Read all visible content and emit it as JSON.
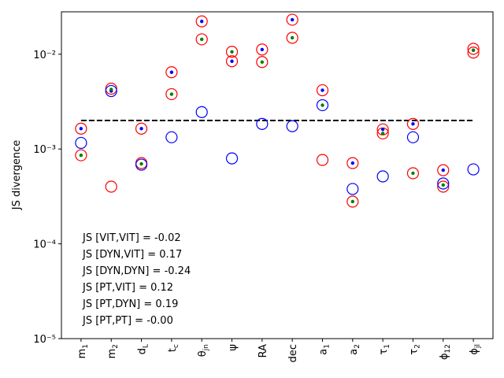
{
  "chart_data": {
    "type": "scatter",
    "categories": [
      "m_1",
      "m_2",
      "d_L",
      "t_c",
      "θ_jn",
      "ψ",
      "RA",
      "dec",
      "a_1",
      "a_2",
      "τ_1",
      "τ_2",
      "ϕ_12",
      "ϕ_jl"
    ],
    "ylabel": "JS divergence",
    "log_y": true,
    "ylim": [
      1e-05,
      0.028
    ],
    "yticks": [
      {
        "value": 1e-05,
        "label": "10⁻⁵"
      },
      {
        "value": 0.0001,
        "label": "10⁻⁴"
      },
      {
        "value": 0.001,
        "label": "10⁻³"
      },
      {
        "value": 0.01,
        "label": "10⁻²"
      }
    ],
    "hline": {
      "value": 0.002,
      "color": "#000000",
      "style": "dashed"
    },
    "series": [
      {
        "marker": "open-circle",
        "color": "#ff0000",
        "values": [
          0.00164,
          0.00433,
          0.00164,
          0.00645,
          0.0222,
          0.0106,
          0.0112,
          0.0231,
          0.00417,
          0.00071,
          0.00161,
          0.00184,
          0.000598,
          0.0114
        ]
      },
      {
        "marker": "open-circle",
        "color": "#ff0000",
        "values": [
          0.000859,
          0.000401,
          0.00071,
          0.00379,
          0.01436,
          0.00843,
          0.00827,
          0.0149,
          0.000766,
          0.000279,
          0.00146,
          0.000555,
          0.000401,
          0.0104
        ]
      },
      {
        "marker": "open-circle",
        "color": "#0000ff",
        "values": [
          0.00116,
          0.00409,
          0.000684,
          0.00133,
          0.00245,
          0.000796,
          0.00184,
          0.00174,
          0.0029,
          0.000379,
          0.000514,
          0.00133,
          0.000433,
          0.00061
        ]
      },
      {
        "marker": "dot",
        "color": "#0000ff",
        "values": [
          0.00164,
          0.00409,
          0.00164,
          0.00645,
          0.0222,
          0.00843,
          0.0112,
          0.0231,
          0.00417,
          0.00071,
          0.00161,
          0.00184,
          0.000598,
          0.011
        ]
      },
      {
        "marker": "dot",
        "color": "#008000",
        "values": [
          0.000859,
          0.00425,
          0.000697,
          0.00379,
          0.01436,
          0.0106,
          0.00827,
          0.0149,
          0.0029,
          0.000279,
          0.00146,
          0.000555,
          0.000417,
          0.011
        ]
      }
    ],
    "annotations": [
      "JS [VIT,VIT] = -0.02",
      "JS [DYN,VIT] = 0.17",
      "JS [DYN,DYN] = -0.24",
      "JS [PT,VIT] = 0.12",
      "JS [PT,DYN] = 0.19",
      "JS [PT,PT] = -0.00"
    ]
  }
}
